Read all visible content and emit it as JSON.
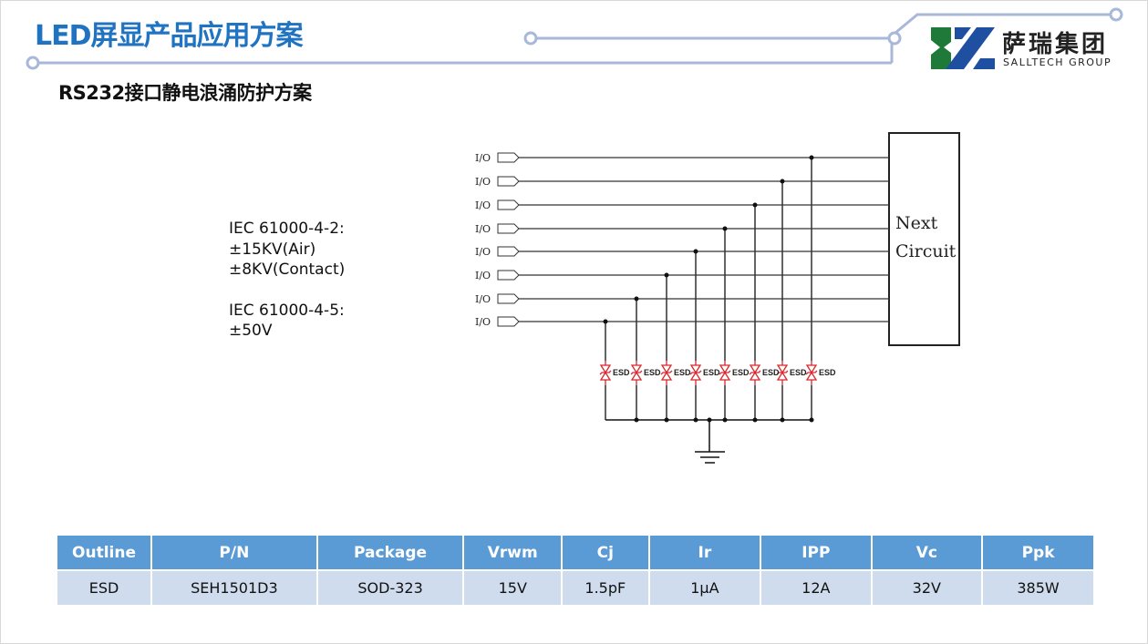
{
  "header": {
    "title": "LED屏显产品应用方案",
    "subtitle": "RS232接口静电浪涌防护方案"
  },
  "logo": {
    "name_cn": "萨瑞集团",
    "name_en": "SALLTECH GROUP",
    "colors": {
      "green": "#1f7a3a",
      "blue": "#1f4fa0"
    }
  },
  "specs": {
    "lines_a": [
      "IEC 61000-4-2:",
      "±15KV(Air)",
      "±8KV(Contact)"
    ],
    "lines_b": [
      "IEC 61000-4-5:",
      "±50V"
    ]
  },
  "circuit": {
    "io_label": "I/O",
    "io_count": 8,
    "esd_label": "ESD",
    "next_circuit": [
      "Next",
      "Circuit"
    ],
    "esd_color": "#d9262c"
  },
  "table": {
    "headers": [
      "Outline",
      "P/N",
      "Package",
      "Vrwm",
      "Cj",
      "Ir",
      "IPP",
      "Vc",
      "Ppk"
    ],
    "rows": [
      [
        "ESD",
        "SEH1501D3",
        "SOD-323",
        "15V",
        "1.5pF",
        "1μA",
        "12A",
        "32V",
        "385W"
      ]
    ],
    "header_color": "#5b9bd5",
    "row_color": "#cfdcee"
  }
}
